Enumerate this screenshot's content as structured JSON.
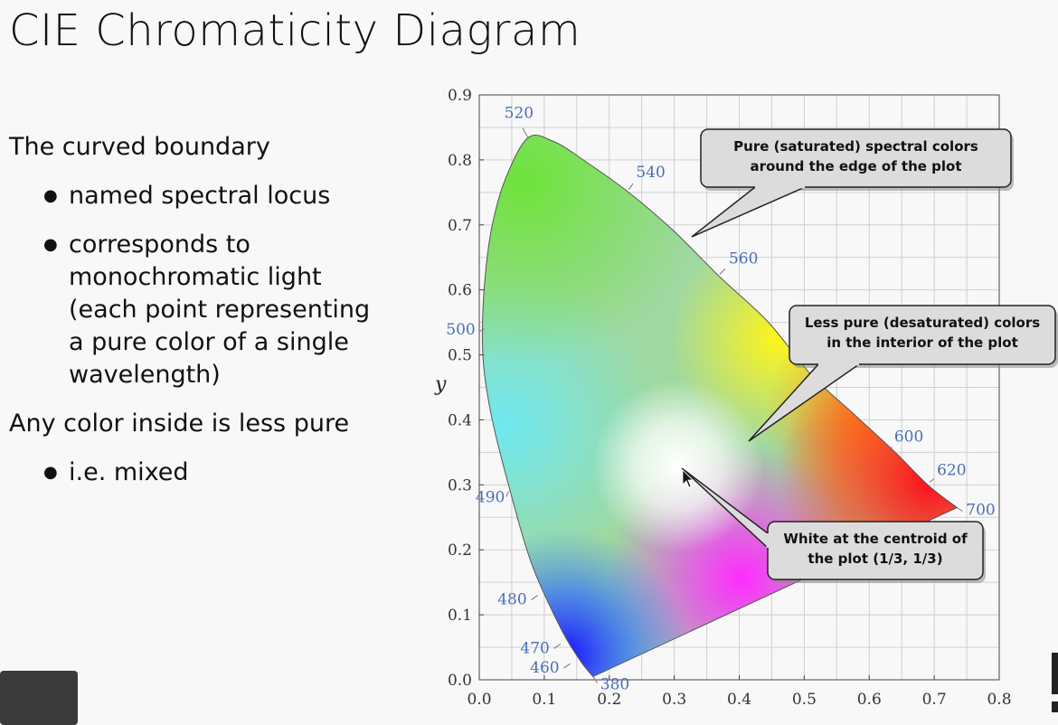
{
  "slide": {
    "title": "CIE Chromaticity Diagram",
    "bullets": [
      {
        "level": 1,
        "text": "The curved boundary"
      },
      {
        "level": 2,
        "text": "named spectral locus"
      },
      {
        "level": 2,
        "text": "corresponds to monochromatic light (each point representing a pure color of a single wavelength)"
      },
      {
        "level": 1,
        "text": "Any color inside is less pure"
      },
      {
        "level": 2,
        "text": "i.e. mixed"
      }
    ]
  },
  "chart_data": {
    "type": "scatter",
    "ylabel": "y",
    "xlabel": "",
    "xlim": [
      0,
      0.8
    ],
    "ylim": [
      0,
      0.9
    ],
    "x_ticks": [
      "0.0",
      "0.1",
      "0.2",
      "0.3",
      "0.4",
      "0.5",
      "0.6",
      "0.7",
      "0.8"
    ],
    "y_ticks": [
      "0.0",
      "0.1",
      "0.2",
      "0.3",
      "0.4",
      "0.5",
      "0.6",
      "0.7",
      "0.8",
      "0.9"
    ],
    "grid": true,
    "spectral_locus": {
      "x": [
        0.175,
        0.155,
        0.125,
        0.08,
        0.045,
        0.02,
        0.007,
        0.005,
        0.01,
        0.02,
        0.04,
        0.075,
        0.115,
        0.16,
        0.23,
        0.3,
        0.37,
        0.445,
        0.51,
        0.575,
        0.64,
        0.69,
        0.735
      ],
      "y": [
        0.005,
        0.03,
        0.08,
        0.18,
        0.3,
        0.4,
        0.48,
        0.55,
        0.63,
        0.7,
        0.77,
        0.834,
        0.828,
        0.8,
        0.75,
        0.69,
        0.62,
        0.55,
        0.47,
        0.41,
        0.35,
        0.3,
        0.265
      ]
    },
    "wavelength_labels": [
      {
        "text": "520",
        "x": 0.075,
        "y": 0.834
      },
      {
        "text": "540",
        "x": 0.23,
        "y": 0.754
      },
      {
        "text": "560",
        "x": 0.37,
        "y": 0.624
      },
      {
        "text": "500",
        "x": 0.008,
        "y": 0.54
      },
      {
        "text": "600",
        "x": 0.63,
        "y": 0.35
      },
      {
        "text": "620",
        "x": 0.693,
        "y": 0.304
      },
      {
        "text": "490",
        "x": 0.045,
        "y": 0.29
      },
      {
        "text": "700",
        "x": 0.735,
        "y": 0.265
      },
      {
        "text": "480",
        "x": 0.09,
        "y": 0.13
      },
      {
        "text": "470",
        "x": 0.125,
        "y": 0.055
      },
      {
        "text": "460",
        "x": 0.14,
        "y": 0.025
      },
      {
        "text": "380",
        "x": 0.175,
        "y": 0.005
      }
    ],
    "annotations": [
      {
        "lines": [
          "Pure (saturated) spectral colors",
          "around the edge of the plot"
        ]
      },
      {
        "lines": [
          "Less pure (desaturated) colors",
          "in the interior of the plot"
        ]
      },
      {
        "lines": [
          "White at the centroid of",
          "the plot (1/3, 1/3)"
        ]
      }
    ],
    "white_point": {
      "x": 0.3333,
      "y": 0.3333
    }
  },
  "colors": {
    "tick_label": "#333333",
    "wavelength_label": "#4a6fb5",
    "grid": "#cfcfcf",
    "callout_fill": "#dcdcdc",
    "callout_stroke": "#222222"
  }
}
